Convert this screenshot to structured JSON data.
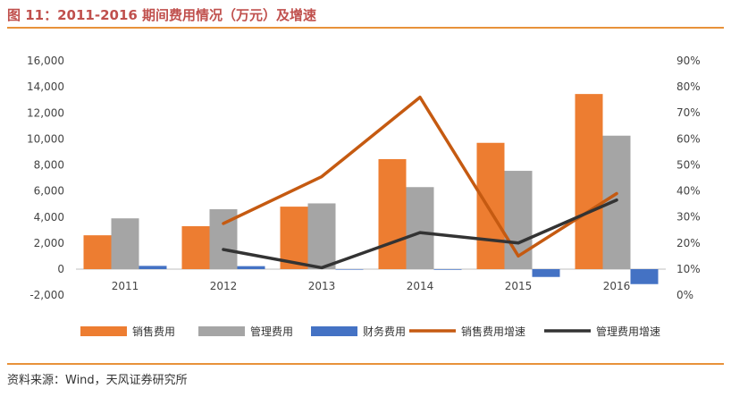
{
  "title": "图 11：2011-2016 期间费用情况（万元）及增速",
  "source": "资料来源：Wind，天风证券研究所",
  "chart_data": {
    "type": "bar",
    "categories": [
      "2011",
      "2012",
      "2013",
      "2014",
      "2015",
      "2016"
    ],
    "series": [
      {
        "name": "销售费用",
        "kind": "bar",
        "axis": "left",
        "color": "#ED7D31",
        "values": [
          2600,
          3300,
          4800,
          8450,
          9700,
          13450
        ]
      },
      {
        "name": "管理费用",
        "kind": "bar",
        "axis": "left",
        "color": "#A5A5A5",
        "values": [
          3900,
          4600,
          5050,
          6300,
          7550,
          10250
        ]
      },
      {
        "name": "财务费用",
        "kind": "bar",
        "axis": "left",
        "color": "#4472C4",
        "values": [
          250,
          230,
          -20,
          -50,
          -600,
          -1150
        ]
      },
      {
        "name": "销售费用增速",
        "kind": "line",
        "axis": "right",
        "color": "#C55A11",
        "values": [
          null,
          0.275,
          0.455,
          0.76,
          0.15,
          0.39
        ]
      },
      {
        "name": "管理费用增速",
        "kind": "line",
        "axis": "right",
        "color": "#333333",
        "values": [
          null,
          0.175,
          0.105,
          0.24,
          0.2,
          0.365
        ]
      }
    ],
    "ylim_left": [
      -2000,
      16000
    ],
    "yticks_left": [
      "-2,000",
      "0",
      "2,000",
      "4,000",
      "6,000",
      "8,000",
      "10,000",
      "12,000",
      "14,000",
      "16,000"
    ],
    "ylim_right": [
      0,
      0.9
    ],
    "yticks_right": [
      "0%",
      "10%",
      "20%",
      "30%",
      "40%",
      "50%",
      "60%",
      "70%",
      "80%",
      "90%"
    ],
    "grid": false,
    "legend": "bottom"
  }
}
